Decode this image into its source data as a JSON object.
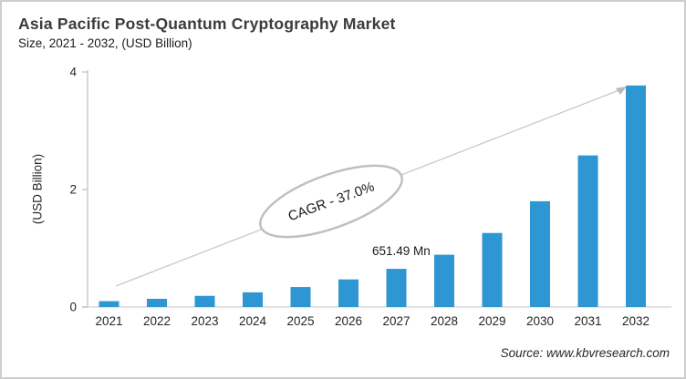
{
  "header": {
    "title": "Asia Pacific Post-Quantum Cryptography Market",
    "subtitle": "Size, 2021 - 2032, (USD Billion)"
  },
  "chart_data": {
    "type": "bar",
    "title": "Asia Pacific Post-Quantum Cryptography Market Size, 2021 - 2032, (USD Billion)",
    "categories": [
      "2021",
      "2022",
      "2023",
      "2024",
      "2025",
      "2026",
      "2027",
      "2028",
      "2029",
      "2030",
      "2031",
      "2032"
    ],
    "values": [
      0.1,
      0.14,
      0.19,
      0.25,
      0.34,
      0.47,
      0.65,
      0.89,
      1.26,
      1.8,
      2.58,
      3.77
    ],
    "xlabel": "",
    "ylabel": "(USD Billion)",
    "yticks": [
      0,
      2,
      4
    ],
    "ylim": [
      0,
      4
    ],
    "grid": false,
    "legend": "none",
    "bar_color": "#2E96D3",
    "annotations": {
      "cagr_label": "CAGR - 37.0%",
      "data_label": {
        "year": "2027",
        "text": "651.49 Mn"
      },
      "trend_arrow": "from 2021 baseline to top of 2032 bar"
    }
  },
  "footer": {
    "source": "Source: www.kbvresearch.com"
  },
  "colors": {
    "bar": "#2E96D3",
    "y_axis_line": "#BFBFBF",
    "x_axis_line": "#D9D9D9",
    "arrow": "#C9C9C9",
    "ellipse_stroke": "#BFBFBF",
    "tick_text": "#262626",
    "title_text": "#3B3B3B"
  }
}
